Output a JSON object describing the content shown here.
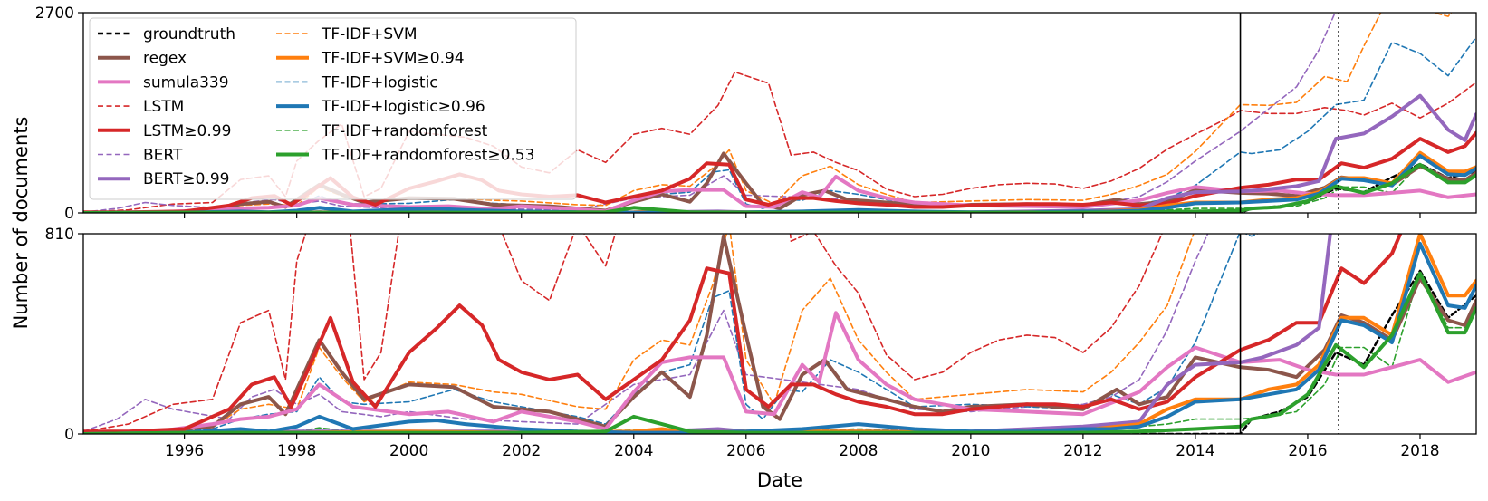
{
  "chart_data": {
    "type": "line",
    "xlabel": "Date",
    "ylabel": "Number of documents",
    "xlim": [
      1994.2,
      2019.0
    ],
    "x_ticks": [
      1996,
      1998,
      2000,
      2002,
      2004,
      2006,
      2008,
      2010,
      2012,
      2014,
      2016,
      2018
    ],
    "x_tick_labels": [
      "1996",
      "1998",
      "2000",
      "2002",
      "2004",
      "2006",
      "2008",
      "2010",
      "2012",
      "2014",
      "2016",
      "2018"
    ],
    "vlines": [
      {
        "x": 2014.8,
        "style": "solid"
      },
      {
        "x": 2016.55,
        "style": "dotted"
      }
    ],
    "panels": [
      {
        "name": "top",
        "ylim": [
          0,
          2700
        ],
        "y_ticks": [
          0,
          2700
        ],
        "y_tick_labels": [
          "0",
          "2700"
        ]
      },
      {
        "name": "bottom",
        "ylim": [
          0,
          810
        ],
        "y_ticks": [
          0,
          810
        ],
        "y_tick_labels": [
          "0",
          "810"
        ]
      }
    ],
    "legend": {
      "position": "top-left of top panel",
      "entries": [
        "groundtruth",
        "regex",
        "sumula339",
        "LSTM",
        "LSTM≥0.99",
        "BERT",
        "BERT≥0.99",
        "TF-IDF+SVM",
        "TF-IDF+SVM≥0.94",
        "TF-IDF+logistic",
        "TF-IDF+logistic≥0.96",
        "TF-IDF+randomforest",
        "TF-IDF+randomforest≥0.53"
      ]
    },
    "series": [
      {
        "name": "groundtruth",
        "color": "#000000",
        "dash": "dashed",
        "width": 2.5,
        "x": [
          1994.2,
          2014.0,
          2014.5,
          2014.8,
          2015.0,
          2015.5,
          2016.0,
          2016.5,
          2017.0,
          2017.5,
          2018.0,
          2018.5,
          2019.0
        ],
        "y": [
          0,
          0,
          0,
          0,
          60,
          90,
          150,
          330,
          280,
          480,
          660,
          470,
          560
        ]
      },
      {
        "name": "regex",
        "color": "#8c564b",
        "dash": "solid",
        "width": 4,
        "x": [
          1994.2,
          1995.5,
          1996.5,
          1997.0,
          1997.5,
          1997.8,
          1998.0,
          1998.4,
          1998.8,
          1999.2,
          2000.0,
          2000.8,
          2001.5,
          2002.5,
          2003.0,
          2003.5,
          2004.0,
          2004.5,
          2005.0,
          2005.3,
          2005.6,
          2006.0,
          2006.3,
          2006.6,
          2007.0,
          2007.4,
          2007.8,
          2008.5,
          2009.0,
          2009.5,
          2010.0,
          2011.0,
          2012.0,
          2012.6,
          2013.0,
          2013.5,
          2014.0,
          2014.8,
          2015.3,
          2015.8,
          2016.3,
          2016.6,
          2017.0,
          2017.5,
          2018.0,
          2018.5,
          2018.8,
          2019.0
        ],
        "y": [
          5,
          10,
          30,
          120,
          150,
          80,
          180,
          380,
          250,
          140,
          200,
          190,
          110,
          90,
          60,
          30,
          150,
          250,
          150,
          400,
          800,
          400,
          110,
          60,
          240,
          300,
          180,
          140,
          110,
          90,
          110,
          120,
          100,
          180,
          120,
          150,
          310,
          270,
          260,
          230,
          340,
          480,
          450,
          380,
          630,
          460,
          440,
          540
        ]
      },
      {
        "name": "sumula339",
        "color": "#e377c2",
        "dash": "solid",
        "width": 4,
        "x": [
          1994.2,
          1995.5,
          1996.5,
          1997.0,
          1997.5,
          1998.0,
          1998.4,
          1999.0,
          2000.0,
          2000.7,
          2001.5,
          2002.0,
          2003.0,
          2003.5,
          2004.0,
          2004.5,
          2005.0,
          2005.6,
          2006.0,
          2006.5,
          2007.0,
          2007.3,
          2007.6,
          2008.0,
          2008.5,
          2009.0,
          2010.0,
          2011.0,
          2012.0,
          2013.0,
          2013.5,
          2014.0,
          2014.8,
          2015.5,
          2016.0,
          2016.5,
          2017.0,
          2017.5,
          2018.0,
          2018.5,
          2019.0
        ],
        "y": [
          5,
          10,
          40,
          60,
          70,
          100,
          200,
          110,
          80,
          90,
          50,
          90,
          50,
          20,
          170,
          290,
          310,
          310,
          90,
          80,
          280,
          210,
          490,
          300,
          200,
          140,
          100,
          90,
          80,
          170,
          270,
          350,
          290,
          300,
          260,
          240,
          240,
          270,
          300,
          210,
          250
        ]
      },
      {
        "name": "LSTM",
        "color": "#d62728",
        "dash": "dashed",
        "width": 1.6,
        "x": [
          1994.2,
          1995.0,
          1995.8,
          1996.5,
          1997.0,
          1997.5,
          1997.8,
          1998.0,
          1998.4,
          1998.8,
          1999.2,
          1999.5,
          2000.0,
          2001.0,
          2001.5,
          2002.0,
          2002.5,
          2003.0,
          2003.5,
          2004.0,
          2004.5,
          2005.0,
          2005.5,
          2005.8,
          2006.0,
          2006.4,
          2006.8,
          2007.2,
          2007.6,
          2008.0,
          2008.5,
          2009.0,
          2009.5,
          2010.0,
          2010.5,
          2011.0,
          2011.5,
          2012.0,
          2012.5,
          2013.0,
          2013.5,
          2014.0,
          2014.5,
          2014.8,
          2015.3,
          2015.8,
          2016.3,
          2016.7,
          2017.0,
          2017.5,
          2018.0,
          2018.5,
          2019.0
        ],
        "y": [
          10,
          40,
          120,
          140,
          450,
          500,
          220,
          700,
          980,
          1200,
          220,
          330,
          1100,
          1020,
          900,
          620,
          540,
          850,
          680,
          1060,
          1140,
          1060,
          1450,
          1900,
          1850,
          1750,
          780,
          820,
          680,
          570,
          320,
          220,
          250,
          330,
          380,
          400,
          390,
          330,
          430,
          600,
          860,
          1060,
          1250,
          1380,
          1340,
          1340,
          1420,
          1380,
          1320,
          1480,
          1280,
          1480,
          1760
        ]
      },
      {
        "name": "LSTM≥0.99",
        "color": "#d62728",
        "dash": "solid",
        "width": 4,
        "x": [
          1994.2,
          1995.0,
          1996.0,
          1996.8,
          1997.2,
          1997.6,
          1997.9,
          1998.2,
          1998.6,
          1999.0,
          1999.4,
          2000.0,
          2000.5,
          2000.9,
          2001.3,
          2001.6,
          2002.0,
          2002.5,
          2003.0,
          2003.5,
          2004.0,
          2004.5,
          2005.0,
          2005.3,
          2005.7,
          2006.0,
          2006.4,
          2006.8,
          2007.2,
          2007.6,
          2008.0,
          2008.5,
          2009.0,
          2009.5,
          2010.0,
          2010.5,
          2011.0,
          2011.5,
          2012.0,
          2012.5,
          2013.0,
          2013.5,
          2014.0,
          2014.8,
          2015.3,
          2015.8,
          2016.2,
          2016.6,
          2017.0,
          2017.5,
          2018.0,
          2018.5,
          2018.8,
          2019.0
        ],
        "y": [
          10,
          10,
          20,
          100,
          200,
          230,
          110,
          260,
          470,
          210,
          110,
          330,
          430,
          520,
          440,
          300,
          250,
          220,
          240,
          140,
          220,
          300,
          460,
          670,
          650,
          180,
          110,
          200,
          200,
          160,
          130,
          110,
          80,
          80,
          100,
          110,
          120,
          120,
          110,
          140,
          100,
          130,
          230,
          340,
          380,
          450,
          450,
          670,
          610,
          730,
          1000,
          820,
          900,
          1080
        ]
      },
      {
        "name": "BERT",
        "color": "#9467bd",
        "dash": "dashed",
        "width": 1.6,
        "x": [
          1994.2,
          1994.8,
          1995.3,
          1995.8,
          1996.3,
          1996.8,
          1997.2,
          1997.6,
          1998.0,
          1998.4,
          1998.8,
          1999.5,
          2000.0,
          2001.0,
          2002.0,
          2003.0,
          2004.0,
          2005.0,
          2005.6,
          2006.0,
          2007.0,
          2008.0,
          2009.0,
          2010.0,
          2011.0,
          2012.0,
          2012.5,
          2013.0,
          2013.5,
          2014.0,
          2014.8,
          2015.3,
          2015.8,
          2016.2,
          2016.6,
          2017.0,
          2017.5,
          2018.0,
          2018.5,
          2019.0
        ],
        "y": [
          10,
          60,
          140,
          100,
          80,
          60,
          150,
          180,
          120,
          160,
          90,
          70,
          90,
          60,
          50,
          40,
          200,
          240,
          500,
          240,
          210,
          180,
          100,
          90,
          110,
          120,
          150,
          220,
          420,
          700,
          1100,
          1400,
          1700,
          2200,
          2900,
          3300,
          3400,
          3300,
          3400,
          3500
        ]
      },
      {
        "name": "BERT≥0.99",
        "color": "#9467bd",
        "dash": "solid",
        "width": 4,
        "x": [
          1994.2,
          1996.0,
          1998.0,
          2000.0,
          2002.0,
          2004.0,
          2005.5,
          2006.0,
          2008.0,
          2010.0,
          2012.0,
          2013.0,
          2013.5,
          2014.0,
          2014.8,
          2015.2,
          2015.8,
          2016.2,
          2016.5,
          2017.0,
          2017.5,
          2018.0,
          2018.5,
          2018.8,
          2019.0
        ],
        "y": [
          0,
          5,
          10,
          10,
          10,
          5,
          20,
          10,
          10,
          10,
          30,
          50,
          200,
          280,
          290,
          310,
          360,
          430,
          1000,
          1070,
          1300,
          1580,
          1120,
          980,
          1330
        ]
      },
      {
        "name": "TF-IDF+SVM",
        "color": "#ff7f0e",
        "dash": "dashed",
        "width": 1.6,
        "x": [
          1994.2,
          1995.5,
          1996.5,
          1997.0,
          1997.5,
          1998.0,
          1998.4,
          1998.8,
          1999.2,
          2000.0,
          2000.8,
          2001.5,
          2002.0,
          2003.0,
          2003.5,
          2004.0,
          2004.5,
          2005.0,
          2005.4,
          2005.7,
          2006.0,
          2006.5,
          2007.0,
          2007.5,
          2008.0,
          2008.5,
          2009.0,
          2010.0,
          2011.0,
          2012.0,
          2012.5,
          2013.0,
          2013.5,
          2014.0,
          2014.8,
          2015.3,
          2015.8,
          2016.3,
          2016.7,
          2017.0,
          2017.5,
          2018.0,
          2018.5,
          2019.0
        ],
        "y": [
          5,
          10,
          30,
          100,
          120,
          100,
          350,
          230,
          130,
          210,
          200,
          170,
          160,
          110,
          100,
          300,
          380,
          360,
          600,
          850,
          300,
          120,
          500,
          630,
          380,
          250,
          140,
          160,
          180,
          170,
          250,
          370,
          520,
          830,
          1460,
          1450,
          1490,
          1840,
          1770,
          2250,
          3000,
          2750,
          2650,
          3100
        ]
      },
      {
        "name": "TF-IDF+SVM≥0.94",
        "color": "#ff7f0e",
        "dash": "solid",
        "width": 4,
        "x": [
          1994.2,
          1996.0,
          1998.0,
          2000.0,
          2002.0,
          2004.0,
          2004.5,
          2005.0,
          2006.0,
          2008.0,
          2010.0,
          2012.0,
          2013.0,
          2013.5,
          2014.0,
          2014.8,
          2015.3,
          2015.8,
          2016.2,
          2016.6,
          2017.0,
          2017.5,
          2018.0,
          2018.5,
          2018.8,
          2019.0
        ],
        "y": [
          0,
          5,
          5,
          10,
          5,
          10,
          20,
          5,
          10,
          10,
          5,
          15,
          40,
          100,
          140,
          140,
          180,
          200,
          280,
          470,
          470,
          400,
          810,
          560,
          560,
          620
        ]
      },
      {
        "name": "TF-IDF+logistic",
        "color": "#1f77b4",
        "dash": "dashed",
        "width": 1.6,
        "x": [
          1994.2,
          1995.5,
          1996.5,
          1997.0,
          1997.5,
          1998.0,
          1998.4,
          1998.8,
          1999.2,
          2000.0,
          2000.8,
          2001.5,
          2002.5,
          2003.0,
          2003.5,
          2004.0,
          2004.5,
          2005.0,
          2005.4,
          2005.7,
          2006.0,
          2006.3,
          2006.7,
          2007.0,
          2007.5,
          2008.0,
          2008.5,
          2009.0,
          2010.0,
          2011.0,
          2012.0,
          2012.5,
          2013.0,
          2013.5,
          2014.0,
          2014.8,
          2015.0,
          2015.5,
          2016.0,
          2016.5,
          2017.0,
          2017.5,
          2018.0,
          2018.5,
          2019.0
        ],
        "y": [
          5,
          10,
          20,
          60,
          80,
          90,
          230,
          130,
          120,
          130,
          180,
          130,
          90,
          70,
          40,
          160,
          250,
          280,
          550,
          580,
          120,
          60,
          180,
          170,
          300,
          250,
          180,
          110,
          120,
          110,
          100,
          160,
          120,
          190,
          370,
          820,
          800,
          850,
          1100,
          1460,
          1520,
          2300,
          2150,
          1850,
          2370
        ]
      },
      {
        "name": "TF-IDF+logistic≥0.96",
        "color": "#1f77b4",
        "dash": "solid",
        "width": 4,
        "x": [
          1994.2,
          1996.0,
          1997.0,
          1997.5,
          1998.0,
          1998.4,
          1999.0,
          2000.0,
          2000.5,
          2001.0,
          2002.0,
          2003.0,
          2004.0,
          2005.0,
          2006.0,
          2007.0,
          2008.0,
          2009.0,
          2010.0,
          2011.0,
          2012.0,
          2012.5,
          2013.0,
          2013.5,
          2014.0,
          2014.8,
          2015.3,
          2015.8,
          2016.2,
          2016.6,
          2017.0,
          2017.5,
          2018.0,
          2018.5,
          2018.8,
          2019.0
        ],
        "y": [
          0,
          5,
          20,
          10,
          30,
          70,
          20,
          50,
          55,
          40,
          20,
          10,
          5,
          5,
          10,
          20,
          40,
          20,
          10,
          10,
          20,
          20,
          30,
          70,
          130,
          140,
          160,
          180,
          260,
          460,
          440,
          370,
          770,
          520,
          510,
          600
        ]
      },
      {
        "name": "TF-IDF+randomforest",
        "color": "#2ca02c",
        "dash": "dashed",
        "width": 1.6,
        "x": [
          1994.2,
          1996.0,
          1998.0,
          1998.4,
          1999.0,
          2000.0,
          2002.0,
          2004.0,
          2005.0,
          2006.0,
          2008.0,
          2010.0,
          2012.0,
          2013.0,
          2013.5,
          2014.0,
          2014.8,
          2015.3,
          2015.8,
          2016.3,
          2016.6,
          2017.0,
          2017.5,
          2018.0,
          2018.5,
          2018.8,
          2019.0
        ],
        "y": [
          0,
          5,
          10,
          25,
          10,
          10,
          10,
          15,
          10,
          10,
          20,
          10,
          10,
          30,
          40,
          60,
          60,
          70,
          90,
          200,
          350,
          350,
          270,
          660,
          430,
          430,
          500
        ]
      },
      {
        "name": "TF-IDF+randomforest≥0.53",
        "color": "#2ca02c",
        "dash": "solid",
        "width": 4,
        "x": [
          1994.2,
          1996.0,
          1998.0,
          2000.0,
          2002.0,
          2003.5,
          2004.0,
          2004.5,
          2005.0,
          2006.0,
          2008.0,
          2010.0,
          2012.0,
          2013.0,
          2014.0,
          2014.8,
          2015.0,
          2015.5,
          2016.0,
          2016.5,
          2017.0,
          2017.5,
          2018.0,
          2018.5,
          2018.8,
          2019.0
        ],
        "y": [
          0,
          5,
          5,
          5,
          5,
          10,
          70,
          40,
          10,
          5,
          5,
          5,
          5,
          10,
          20,
          30,
          60,
          80,
          160,
          360,
          270,
          400,
          650,
          410,
          410,
          510
        ]
      }
    ]
  }
}
